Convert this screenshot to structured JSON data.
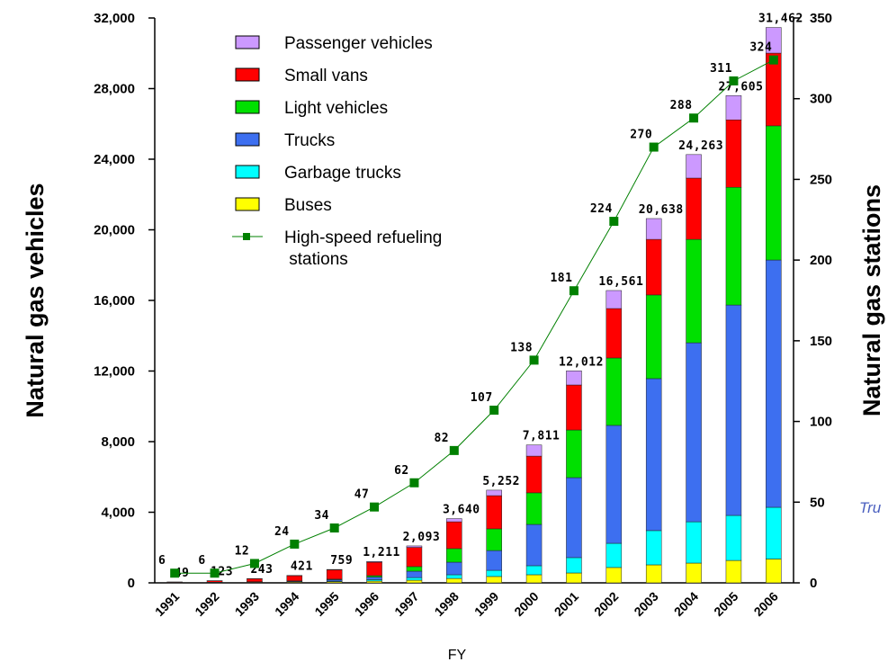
{
  "chart_data": {
    "type": "stacked_bar_line",
    "categories": [
      "1991",
      "1992",
      "1993",
      "1994",
      "1995",
      "1996",
      "1997",
      "1998",
      "1999",
      "2000",
      "2001",
      "2002",
      "2003",
      "2004",
      "2005",
      "2006"
    ],
    "series": [
      {
        "name": "Buses",
        "color": "#ffff00",
        "values": [
          10,
          20,
          30,
          40,
          60,
          100,
          150,
          250,
          360,
          460,
          560,
          870,
          1020,
          1120,
          1270,
          1350
        ]
      },
      {
        "name": "Garbage trucks",
        "color": "#00ffff",
        "values": [
          2,
          5,
          10,
          20,
          40,
          80,
          150,
          210,
          350,
          510,
          870,
          1370,
          1940,
          2340,
          2550,
          2930
        ]
      },
      {
        "name": "Trucks",
        "color": "#3d6ff0",
        "values": [
          5,
          10,
          20,
          40,
          80,
          150,
          360,
          710,
          1120,
          2340,
          4530,
          6680,
          8610,
          10140,
          11920,
          14010
        ]
      },
      {
        "name": "Light vehicles",
        "color": "#00e000",
        "values": [
          2,
          3,
          5,
          10,
          30,
          80,
          260,
          770,
          1230,
          1790,
          2700,
          3820,
          4740,
          5860,
          6670,
          7600
        ]
      },
      {
        "name": "Small vans",
        "color": "#ff0000",
        "values": [
          28,
          80,
          168,
          296,
          529,
          761,
          1090,
          1520,
          1880,
          2080,
          2550,
          2800,
          3150,
          3470,
          3820,
          4120
        ]
      },
      {
        "name": "Passenger vehicles",
        "color": "#cc99ff",
        "values": [
          2,
          5,
          10,
          15,
          20,
          40,
          83,
          180,
          312,
          631,
          802,
          1021,
          1178,
          1333,
          1375,
          1452
        ]
      },
      {
        "name": "High-speed refueling\n stations",
        "color": "#008000",
        "axis": "y2",
        "type": "line",
        "values": [
          6,
          6,
          12,
          24,
          34,
          47,
          62,
          82,
          107,
          138,
          181,
          224,
          270,
          288,
          311,
          324
        ]
      }
    ],
    "totals": [
      49,
      123,
      243,
      421,
      759,
      1211,
      2093,
      3640,
      5252,
      7811,
      12012,
      16561,
      20638,
      24263,
      27605,
      31462
    ],
    "total_labels": [
      "49",
      "123",
      "243",
      "421",
      "759",
      "1,211",
      "2,093",
      "3,640",
      "5,252",
      "7,811",
      "12,012",
      "16,561",
      "20,638",
      "24,263",
      "27,605",
      "31,462"
    ],
    "xlabel": "FY",
    "ylabel": "Natural gas vehicles",
    "y2label": "Natural gas stations",
    "annotation": "Tru",
    "ylim": [
      0,
      32000
    ],
    "yticks": [
      0,
      {
        "value": 4000,
        "label": "4,000"
      },
      {
        "value": 8000,
        "label": "8,000"
      },
      {
        "value": 12000,
        "label": "12,000"
      },
      {
        "value": 16000,
        "label": "16,000"
      },
      {
        "value": 20000,
        "label": "20,000"
      },
      {
        "value": 24000,
        "label": "24,000"
      },
      {
        "value": 28000,
        "label": "28,000"
      },
      {
        "value": 32000,
        "label": "32,000"
      }
    ],
    "y2lim": [
      0,
      350
    ],
    "y2ticks": [
      0,
      50,
      100,
      150,
      200,
      250,
      300,
      350
    ],
    "legend": "top-left"
  }
}
